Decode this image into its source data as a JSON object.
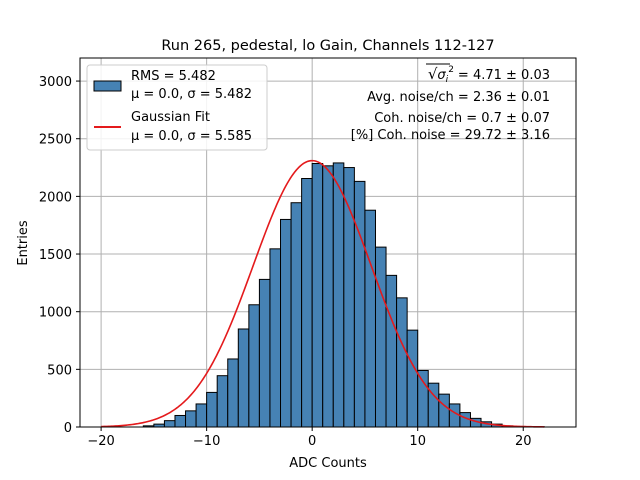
{
  "chart_data": {
    "type": "bar",
    "title": "Run 265, pedestal, lo Gain, Channels 112-127",
    "xlabel": "ADC Counts",
    "ylabel": "Entries",
    "xlim": [
      -22,
      25
    ],
    "ylim": [
      0,
      3200
    ],
    "xticks": [
      -20,
      -10,
      0,
      10,
      20
    ],
    "xtick_labels": [
      "−20",
      "−10",
      "0",
      "10",
      "20"
    ],
    "yticks": [
      0,
      500,
      1000,
      1500,
      2000,
      2500,
      3000
    ],
    "ytick_labels": [
      "0",
      "500",
      "1000",
      "1500",
      "2000",
      "2500",
      "3000"
    ],
    "grid": true,
    "legend_position": "top-left",
    "colors": {
      "hist_fill": "#4682b4",
      "hist_edge": "#000000",
      "fit_line": "#e41a1c",
      "grid": "#b0b0b0"
    },
    "series": [
      {
        "name": "RMS = 5.482",
        "name2": "μ = 0.0, σ = 5.482",
        "kind": "histogram",
        "bin_width": 1,
        "x": [
          -16,
          -15,
          -14,
          -13,
          -12,
          -11,
          -10,
          -9,
          -8,
          -7,
          -6,
          -5,
          -4,
          -3,
          -2,
          -1,
          0,
          1,
          2,
          3,
          4,
          5,
          6,
          7,
          8,
          9,
          10,
          11,
          12,
          13,
          14,
          15,
          16,
          17,
          18,
          19,
          20,
          21
        ],
        "values": [
          10,
          25,
          55,
          100,
          140,
          200,
          300,
          445,
          590,
          850,
          1060,
          1280,
          1545,
          1800,
          1945,
          2155,
          2285,
          2265,
          2290,
          2250,
          2130,
          1880,
          1560,
          1315,
          1120,
          840,
          490,
          380,
          285,
          200,
          125,
          75,
          45,
          25,
          10,
          5,
          3,
          2
        ]
      },
      {
        "name": "Gaussian Fit",
        "name2": "μ = 0.0, σ = 5.585",
        "kind": "line",
        "mu": 0.0,
        "sigma": 5.585,
        "amplitude": 2310,
        "x_range": [
          -20,
          22
        ]
      }
    ],
    "annotations": [
      {
        "pre": "√",
        "symbol": "σ",
        "sub": "i",
        "sup": "2",
        "value": "= 4.71 ± 0.03"
      },
      {
        "text": "Avg. noise/ch = 2.36 ± 0.01"
      },
      {
        "text": "Coh. noise/ch = 0.7 ± 0.07"
      },
      {
        "text": "[%] Coh. noise = 29.72 ± 3.16"
      }
    ]
  }
}
